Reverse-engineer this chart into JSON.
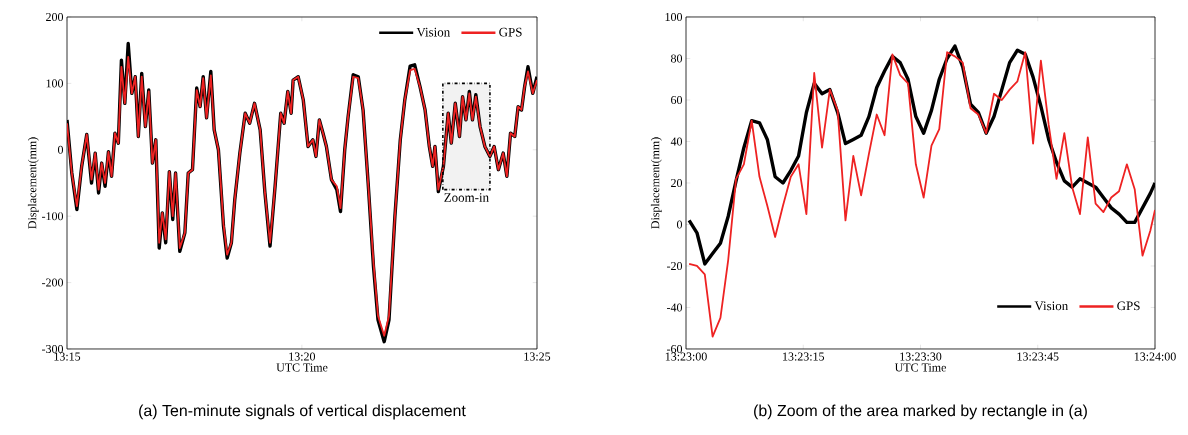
{
  "chart_data": [
    {
      "type": "line",
      "title": "(a) Ten-minute signals of vertical displacement",
      "xlabel": "UTC Time",
      "ylabel": "Displacement(mm)",
      "x": [
        13.25,
        13.2517,
        13.2535,
        13.2552,
        13.257,
        13.2587,
        13.26,
        13.2612,
        13.2623,
        13.2635,
        13.2647,
        13.2658,
        13.267,
        13.2682,
        13.2693,
        13.2705,
        13.2717,
        13.273,
        13.2742,
        13.2753,
        13.2765,
        13.2778,
        13.279,
        13.2803,
        13.2815,
        13.2827,
        13.2838,
        13.285,
        13.2863,
        13.2875,
        13.2885,
        13.29,
        13.2918,
        13.293,
        13.2945,
        13.296,
        13.2972,
        13.2983,
        13.2995,
        13.301,
        13.3022,
        13.3037,
        13.3055,
        13.3068,
        13.3083,
        13.3095,
        13.3113,
        13.3132,
        13.3148,
        13.3165,
        13.3185,
        13.3202,
        13.322,
        13.3238,
        13.3258,
        13.327,
        13.3283,
        13.3295,
        13.3302,
        13.332,
        13.3338,
        13.3355,
        13.3372,
        13.3383,
        13.3395,
        13.3408,
        13.342,
        13.3438,
        13.3457,
        13.347,
        13.3485,
        13.3497,
        13.3515,
        13.3533,
        13.355,
        13.3568,
        13.3587,
        13.3603,
        13.3625,
        13.3642,
        13.3663,
        13.3682,
        13.3698,
        13.3717,
        13.3733,
        13.3752,
        13.377,
        13.3785,
        13.3797,
        13.3805,
        13.3817,
        13.3835,
        13.3852,
        13.3863,
        13.3877,
        13.3892,
        13.3903,
        13.3915,
        13.3927,
        13.3938,
        13.395,
        13.3965,
        13.3982,
        13.4,
        13.4015,
        13.403,
        13.4047,
        13.406,
        13.4073,
        13.4088,
        13.41,
        13.4112,
        13.4123,
        13.4135,
        13.4152,
        13.4167
      ],
      "series": [
        {
          "name": "Vision",
          "color": "#000000",
          "values": [
            45,
            -35,
            -90,
            -25,
            23,
            -50,
            -5,
            -65,
            -20,
            -55,
            -3,
            -40,
            25,
            10,
            135,
            70,
            160,
            85,
            110,
            20,
            115,
            35,
            90,
            -20,
            15,
            -148,
            -95,
            -140,
            -33,
            -105,
            -35,
            -153,
            -125,
            -35,
            -30,
            93,
            65,
            110,
            48,
            118,
            30,
            0,
            -115,
            -163,
            -140,
            -75,
            -5,
            55,
            40,
            70,
            30,
            -65,
            -145,
            -55,
            55,
            40,
            88,
            55,
            105,
            110,
            75,
            5,
            15,
            -10,
            45,
            25,
            5,
            -45,
            -60,
            -93,
            0,
            50,
            113,
            110,
            60,
            -50,
            -176,
            -256,
            -289,
            -256,
            -100,
            15,
            75,
            126,
            128,
            95,
            60,
            5,
            -25,
            5,
            -63,
            -25,
            55,
            10,
            70,
            20,
            80,
            45,
            88,
            45,
            83,
            35,
            5,
            -10,
            5,
            -30,
            -5,
            -40,
            25,
            20,
            65,
            60,
            95,
            125,
            85,
            110
          ]
        },
        {
          "name": "GPS",
          "color": "#ee2222",
          "values": [
            40,
            -35,
            -85,
            -25,
            23,
            -45,
            -5,
            -60,
            -20,
            -50,
            -3,
            -40,
            25,
            10,
            125,
            70,
            140,
            85,
            110,
            20,
            110,
            35,
            88,
            -20,
            15,
            -140,
            -95,
            -135,
            -33,
            -100,
            -35,
            -148,
            -125,
            -35,
            -30,
            90,
            65,
            108,
            48,
            112,
            30,
            0,
            -112,
            -158,
            -140,
            -75,
            -5,
            55,
            40,
            70,
            30,
            -65,
            -140,
            -55,
            55,
            40,
            88,
            55,
            105,
            110,
            75,
            5,
            15,
            -10,
            45,
            25,
            5,
            -45,
            -55,
            -88,
            0,
            50,
            110,
            108,
            60,
            -50,
            -170,
            -250,
            -280,
            -250,
            -100,
            15,
            75,
            120,
            122,
            95,
            60,
            5,
            -25,
            5,
            -60,
            -25,
            55,
            10,
            70,
            20,
            80,
            45,
            85,
            45,
            80,
            35,
            5,
            -10,
            5,
            -30,
            -5,
            -40,
            25,
            20,
            65,
            60,
            95,
            118,
            85,
            105
          ]
        }
      ],
      "xlim": [
        13.25,
        13.4167
      ],
      "xticks": [
        {
          "value": 13.25,
          "label": "13:15"
        },
        {
          "value": 13.3333,
          "label": "13:20"
        },
        {
          "value": 13.4167,
          "label": "13:25"
        }
      ],
      "ylim": [
        -300,
        200
      ],
      "yticks": [
        -300,
        -200,
        -100,
        0,
        100,
        200
      ],
      "bands": [
        {
          "axis": "x",
          "from": 13.3833,
          "to": 13.4,
          "label": "Zoom-in",
          "color": "#f2f2f2"
        }
      ],
      "legend": "top right",
      "grid": false
    },
    {
      "type": "line",
      "title": "(b) Zoom of the area marked by rectangle in (a)",
      "xlabel": "UTC Time",
      "ylabel": "Displacement(mm)",
      "x": [
        13.383444,
        13.383722,
        13.384,
        13.384278,
        13.384556,
        13.384833,
        13.385111,
        13.385389,
        13.385667,
        13.385944,
        13.386222,
        13.3865,
        13.386778,
        13.387056,
        13.387333,
        13.387611,
        13.387889,
        13.388167,
        13.388444,
        13.388722,
        13.389,
        13.389278,
        13.389556,
        13.389833,
        13.390111,
        13.390389,
        13.390667,
        13.390944,
        13.391222,
        13.3915,
        13.391778,
        13.392056,
        13.392333,
        13.392611,
        13.392889,
        13.393167,
        13.393444,
        13.393722,
        13.394,
        13.394278,
        13.394556,
        13.394833,
        13.395111,
        13.395389,
        13.395667,
        13.395944,
        13.396222,
        13.3965,
        13.396778,
        13.397056,
        13.397333,
        13.397611,
        13.397889,
        13.398167,
        13.398444,
        13.398722,
        13.399,
        13.399278,
        13.399556,
        13.399833,
        13.4
      ],
      "series": [
        {
          "name": "Vision",
          "color": "#000000",
          "values": [
            2,
            -4,
            -19,
            -14,
            -9,
            4,
            21,
            37,
            50,
            49,
            41,
            23,
            20,
            26,
            33,
            54,
            68,
            63,
            65,
            54,
            39,
            41,
            43,
            52,
            66,
            74,
            81,
            78,
            70,
            52,
            44,
            55,
            70,
            80,
            86,
            76,
            58,
            54,
            44,
            52,
            65,
            78,
            84,
            82,
            71,
            57,
            41,
            30,
            21,
            18,
            22,
            20,
            18,
            13,
            8,
            5,
            1,
            1,
            8,
            15,
            20
          ]
        },
        {
          "name": "GPS",
          "color": "#ee2222",
          "values": [
            -19,
            -20,
            -24,
            -54,
            -45,
            -17,
            22,
            29,
            50,
            23,
            9,
            -6,
            9,
            23,
            29,
            5,
            73,
            37,
            65,
            55,
            2,
            33,
            14,
            34,
            53,
            43,
            82,
            72,
            68,
            29,
            13,
            38,
            46,
            83,
            81,
            78,
            56,
            53,
            44,
            63,
            60,
            65,
            69,
            83,
            39,
            79,
            48,
            22,
            44,
            18,
            5,
            42,
            10,
            6,
            13,
            16,
            29,
            17,
            -15,
            -3,
            7
          ]
        }
      ],
      "xlim": [
        13.383333,
        13.4
      ],
      "xticks": [
        {
          "value": 13.383333,
          "label": "13:23:00"
        },
        {
          "value": 13.3875,
          "label": "13:23:15"
        },
        {
          "value": 13.391667,
          "label": "13:23:30"
        },
        {
          "value": 13.395833,
          "label": "13:23:45"
        },
        {
          "value": 13.4,
          "label": "13:24:00"
        }
      ],
      "ylim": [
        -60,
        100
      ],
      "yticks": [
        -60,
        -40,
        -20,
        0,
        20,
        40,
        60,
        80,
        100
      ],
      "legend": "bottom right",
      "grid": false
    }
  ]
}
